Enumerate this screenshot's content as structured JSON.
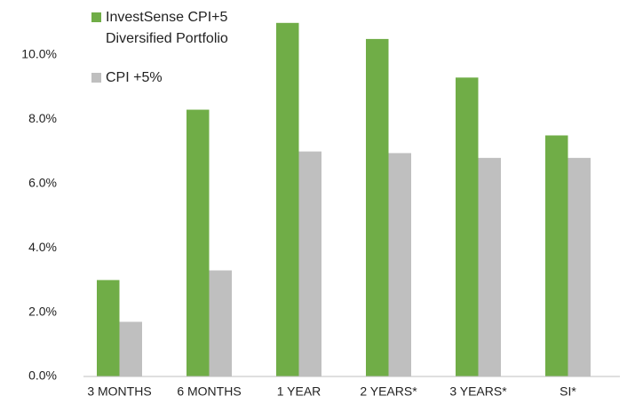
{
  "chart_data": {
    "type": "bar",
    "categories": [
      "3 MONTHS",
      "6 MONTHS",
      "1 YEAR",
      "2 YEARS*",
      "3 YEARS*",
      "SI*"
    ],
    "series": [
      {
        "name": "InvestSense CPI+5 Diversified Portfolio",
        "color": "#70ad47",
        "values": [
          3.0,
          8.3,
          11.0,
          10.5,
          9.3,
          7.5
        ]
      },
      {
        "name": "CPI +5%",
        "color": "#bfbfbf",
        "values": [
          1.7,
          3.3,
          7.0,
          6.95,
          6.8,
          6.8
        ]
      }
    ],
    "ylim": [
      0,
      11
    ],
    "yticks": [
      {
        "value": 0,
        "label": "0.0%"
      },
      {
        "value": 2,
        "label": "2.0%"
      },
      {
        "value": 4,
        "label": "4.0%"
      },
      {
        "value": 6,
        "label": "6.0%"
      },
      {
        "value": 8,
        "label": "8.0%"
      },
      {
        "value": 10,
        "label": "10.0%"
      }
    ],
    "grid": false,
    "legend": "top-left"
  }
}
